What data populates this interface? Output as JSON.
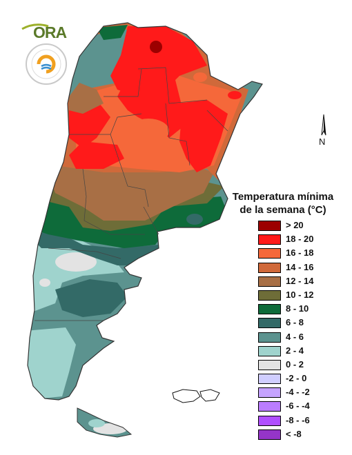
{
  "legend": {
    "title_line1": "Temperatura mínima",
    "title_line2": "de la semana (°C)",
    "items": [
      {
        "label": "> 20",
        "color": "#9c0000"
      },
      {
        "label": "18 - 20",
        "color": "#ff1a1a"
      },
      {
        "label": "16 - 18",
        "color": "#f5683a"
      },
      {
        "label": "14 - 16",
        "color": "#d0693a"
      },
      {
        "label": "12 - 14",
        "color": "#a86f45"
      },
      {
        "label": "10 - 12",
        "color": "#6e6d38"
      },
      {
        "label": "8 - 10",
        "color": "#0e6b3a"
      },
      {
        "label": "6 - 8",
        "color": "#336a67"
      },
      {
        "label": "4 - 6",
        "color": "#5c938f"
      },
      {
        "label": "2 - 4",
        "color": "#9fd3cd"
      },
      {
        "label": "0 - 2",
        "color": "#e3e3e3"
      },
      {
        "label": "-2 - 0",
        "color": "#d0ceff"
      },
      {
        "label": "-4 - -2",
        "color": "#c5a3ff"
      },
      {
        "label": "-6 - -4",
        "color": "#bb7dff"
      },
      {
        "label": "-8 - -6",
        "color": "#b04fff"
      },
      {
        "label": "< -8",
        "color": "#9535c8"
      }
    ]
  },
  "logos": {
    "ora_text": "ORA",
    "ora_icon": "ora-logo-icon",
    "smn_icon": "smn-seal-icon"
  },
  "north_arrow": {
    "label": "N",
    "icon": "north-arrow-icon"
  }
}
